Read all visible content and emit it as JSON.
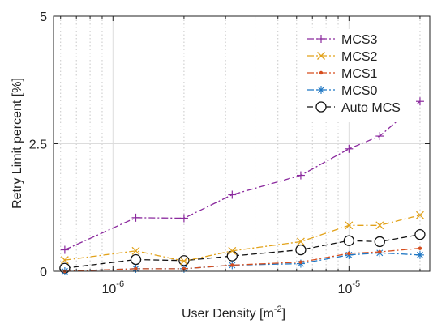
{
  "chart_data": {
    "type": "line",
    "xlabel": "User Density [m",
    "xlabel_sup": "-2",
    "xlabel_tail": "]",
    "ylabel": "Retry Limit percent [%]",
    "x_scale": "log",
    "xlim": [
      5.6e-07,
      2.2e-05
    ],
    "ylim": [
      0,
      5
    ],
    "yticks": [
      0,
      2.5,
      5
    ],
    "ytick_labels": [
      "0",
      "2.5",
      "5"
    ],
    "xticks_major": [
      1e-06,
      1e-05
    ],
    "xtick_major_labels": [
      {
        "base": "10",
        "exp": "-6"
      },
      {
        "base": "10",
        "exp": "-5"
      }
    ],
    "xticks_minor": [
      6e-07,
      7e-07,
      8e-07,
      9e-07,
      2e-06,
      3e-06,
      4e-06,
      5e-06,
      6e-06,
      7e-06,
      8e-06,
      9e-06,
      2e-05
    ],
    "grid": true,
    "legend_position": "top-right",
    "x": [
      6.25e-07,
      1.25e-06,
      2e-06,
      3.2e-06,
      6.25e-06,
      1e-05,
      1.35e-05,
      2e-05
    ],
    "series": [
      {
        "name": "MCS3",
        "color": "#8b2a9e",
        "marker": "plus",
        "dash": "dashdot",
        "values": [
          0.42,
          1.05,
          1.04,
          1.5,
          1.88,
          2.4,
          2.65,
          3.33
        ]
      },
      {
        "name": "MCS2",
        "color": "#e2a21a",
        "marker": "x",
        "dash": "dashdot",
        "values": [
          0.22,
          0.4,
          0.2,
          0.4,
          0.58,
          0.9,
          0.9,
          1.1
        ]
      },
      {
        "name": "MCS1",
        "color": "#d64d1e",
        "marker": "dot",
        "dash": "dashdot",
        "values": [
          0.0,
          0.05,
          0.05,
          0.12,
          0.18,
          0.35,
          0.38,
          0.45
        ]
      },
      {
        "name": "MCS0",
        "color": "#1f77c4",
        "marker": "asterisk",
        "dash": "dashdot",
        "values": [
          0.0,
          0.05,
          0.05,
          0.12,
          0.15,
          0.32,
          0.36,
          0.32
        ]
      },
      {
        "name": "Auto MCS",
        "color": "#111111",
        "marker": "circle",
        "dash": "dashed",
        "values": [
          0.06,
          0.23,
          0.21,
          0.3,
          0.42,
          0.6,
          0.58,
          0.72
        ]
      }
    ]
  }
}
